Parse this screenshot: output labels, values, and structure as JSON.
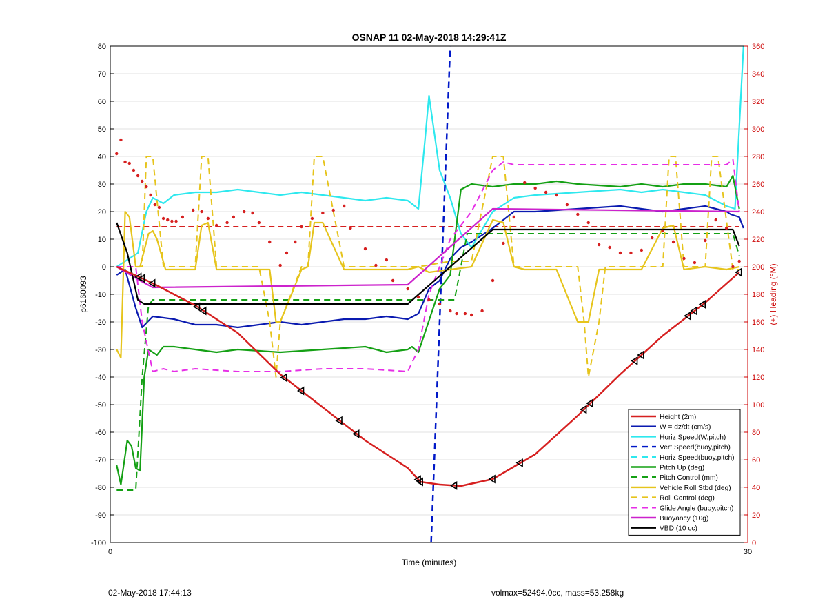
{
  "chart_data": {
    "type": "line",
    "title": "OSNAP 11 02-May-2018 14:29:41Z",
    "xlabel": "Time (minutes)",
    "ylabel": "p6160093",
    "y2label": "(+) Heading (°M)",
    "xlim": [
      0,
      30
    ],
    "ylim": [
      -100,
      80
    ],
    "y2lim": [
      0,
      360
    ],
    "xticks": [
      0,
      30
    ],
    "yticks": [
      -100,
      -90,
      -80,
      -70,
      -60,
      -50,
      -40,
      -30,
      -20,
      -10,
      0,
      10,
      20,
      30,
      40,
      50,
      60,
      70,
      80
    ],
    "y2ticks": [
      0,
      20,
      40,
      60,
      80,
      100,
      120,
      140,
      160,
      180,
      200,
      220,
      240,
      260,
      280,
      300,
      320,
      340,
      360
    ],
    "grid": "horizontal",
    "legend_position": "bottom-right",
    "colors": {
      "axis_right": "#cc0000",
      "axis_left": "#000000"
    },
    "series": [
      {
        "name": "Height (2m)",
        "color": "#d62020",
        "style": "solid",
        "width": 2.5,
        "x": [
          0.3,
          2,
          4,
          6,
          8,
          10,
          12,
          14,
          14.6,
          15.5,
          16.5,
          18,
          20,
          22,
          24,
          26,
          28,
          29.6
        ],
        "y": [
          0,
          -6,
          -14,
          -24,
          -39,
          -51,
          -63,
          -73,
          -78,
          -79,
          -79.5,
          -77,
          -68,
          -54,
          -39,
          -25,
          -13,
          -2
        ]
      },
      {
        "name": "W = dz/dt (cm/s)",
        "color": "#0a1ab0",
        "style": "solid",
        "width": 2.2,
        "x": [
          0.3,
          0.7,
          1.2,
          1.5,
          2,
          3,
          4,
          5,
          6,
          7,
          8,
          9,
          10,
          11,
          12,
          13,
          14,
          14.5,
          15,
          15.5,
          16,
          16.5,
          17,
          18,
          19,
          20,
          22,
          24,
          25,
          26,
          27,
          28,
          29,
          29.2,
          29.6,
          29.8
        ],
        "y": [
          -3,
          -1,
          -15,
          -22,
          -18,
          -19,
          -21,
          -21,
          -22,
          -21,
          -20,
          -21,
          -20,
          -19,
          -19,
          -18,
          -19,
          -17,
          -8,
          -5,
          3,
          7,
          9,
          14,
          20,
          20,
          21,
          22,
          21,
          20,
          21,
          22,
          20,
          19,
          18,
          14
        ]
      },
      {
        "name": "Horiz Speed(W,pitch)",
        "color": "#2ee8ee",
        "style": "solid",
        "width": 2.2,
        "x": [
          0.3,
          1.3,
          1.7,
          2,
          2.5,
          3,
          4,
          5,
          6,
          7,
          8,
          9,
          10,
          11,
          12,
          13,
          14,
          14.5,
          14.8,
          15,
          15.5,
          16,
          16.5,
          17,
          18,
          19,
          20,
          22,
          24,
          25,
          26,
          27,
          28,
          29,
          29.4,
          29.8
        ],
        "y": [
          0,
          5,
          20,
          25,
          23,
          26,
          27,
          27,
          28,
          27,
          26,
          27,
          26,
          25,
          24,
          25,
          24,
          21,
          45,
          62,
          35,
          25,
          12,
          7,
          20,
          25,
          26,
          27,
          28,
          27,
          28,
          27,
          26,
          22,
          21,
          80
        ]
      },
      {
        "name": "Vert Speed(buoy,pitch)",
        "color": "#0018c8",
        "style": "dashed",
        "width": 2.5,
        "x": [
          15.1,
          16.0
        ],
        "y": [
          -100,
          80
        ]
      },
      {
        "name": "Horiz Speed(buoy,pitch)",
        "color": "#2ee8ee",
        "style": "dashed",
        "width": 2,
        "x": [],
        "y": []
      },
      {
        "name": "Pitch Up (deg)",
        "color": "#14a014",
        "style": "solid",
        "width": 2.2,
        "x": [
          0.3,
          0.5,
          0.8,
          1,
          1.2,
          1.4,
          1.6,
          1.8,
          2.2,
          2.5,
          3,
          4,
          5,
          6,
          8,
          10,
          12,
          13,
          14,
          14.2,
          14.5,
          15.5,
          16,
          16.5,
          17,
          18,
          19,
          20,
          21,
          22,
          24,
          25,
          26,
          27,
          28,
          29,
          29.3,
          29.6
        ],
        "y": [
          -72,
          -79,
          -63,
          -65,
          -73,
          -74,
          -40,
          -30,
          -32,
          -29,
          -29,
          -30,
          -31,
          -30,
          -31,
          -30,
          -29,
          -31,
          -30,
          -29,
          -31,
          -8,
          -3,
          28,
          30,
          29,
          30,
          30,
          31,
          30,
          29,
          30,
          29,
          30,
          30,
          29,
          33,
          21
        ]
      },
      {
        "name": "Pitch Control (mm)",
        "color": "#14a014",
        "style": "dashed",
        "width": 2,
        "x": [
          0.3,
          1.2,
          1.5,
          1.8,
          2,
          3,
          14,
          14.4,
          16.2,
          16.8,
          29.3,
          29.6
        ],
        "y": [
          -81,
          -81,
          -40,
          -14,
          -12,
          -12,
          -12,
          -12,
          -12,
          12,
          12,
          4
        ]
      },
      {
        "name": "Vehicle Roll Stbd (deg)",
        "color": "#e6c41c",
        "style": "solid",
        "width": 2.2,
        "x": [
          0.3,
          0.5,
          0.7,
          0.9,
          1.2,
          1.4,
          1.8,
          2,
          2.2,
          2.6,
          3,
          4,
          4.3,
          4.6,
          5,
          6,
          7,
          7.5,
          7.8,
          8,
          9,
          9.3,
          9.6,
          10,
          11,
          11.5,
          12,
          13,
          14,
          14.5,
          15,
          16,
          17,
          18,
          18.5,
          19,
          19.5,
          20,
          21,
          22,
          22.5,
          23,
          23.5,
          24,
          25,
          26,
          26.5,
          27,
          28,
          29,
          29.6
        ],
        "y": [
          -30,
          -33,
          20,
          18,
          0,
          0,
          12,
          13,
          10,
          -1,
          -1,
          -1,
          15,
          16,
          -1,
          -1,
          -1,
          -1,
          -20,
          -20,
          -1,
          0,
          16,
          16,
          -1,
          -1,
          -1,
          -1,
          -1,
          0,
          -2,
          -1,
          0,
          17,
          16,
          0,
          -1,
          -1,
          -1,
          -20,
          -20,
          -1,
          -1,
          -1,
          -1,
          14,
          15,
          -1,
          0,
          -1,
          0
        ]
      },
      {
        "name": "Roll Control (deg)",
        "color": "#e6c41c",
        "style": "dashed",
        "width": 2,
        "x": [
          0.3,
          1.5,
          1.7,
          2,
          2.5,
          3,
          4,
          4.3,
          4.6,
          5,
          7,
          7.5,
          7.8,
          8,
          9,
          9.3,
          9.6,
          10,
          11,
          14,
          14.5,
          16,
          16.5,
          17,
          18,
          18.5,
          19,
          19.5,
          22,
          22.3,
          22.5,
          23,
          23.3,
          26,
          26.3,
          26.6,
          27,
          27.5,
          28,
          28.3,
          28.6,
          29.3,
          29.6
        ],
        "y": [
          0,
          0,
          40,
          40,
          0,
          0,
          0,
          40,
          40,
          0,
          0,
          -20,
          -40,
          -20,
          0,
          0,
          40,
          40,
          0,
          0,
          0,
          2,
          2,
          2,
          40,
          40,
          0,
          0,
          0,
          -20,
          -40,
          -20,
          0,
          0,
          40,
          40,
          0,
          0,
          0,
          40,
          40,
          -1,
          -1
        ]
      },
      {
        "name": "Glide Angle (buoy,pitch)",
        "color": "#e62ee6",
        "style": "dashed",
        "width": 2,
        "x": [
          0.3,
          1.2,
          1.5,
          2,
          2.5,
          3,
          4,
          6,
          8,
          10,
          12,
          14,
          14.5,
          15,
          16,
          17,
          18,
          18.5,
          19,
          20,
          21,
          22,
          24,
          26,
          28,
          29,
          29.3,
          29.6
        ],
        "y": [
          0,
          0,
          -20,
          -38,
          -37,
          -38,
          -37,
          -38,
          -38,
          -37,
          -37,
          -38,
          -30,
          -10,
          10,
          20,
          35,
          38,
          37,
          37,
          37,
          37,
          37,
          37,
          37,
          37,
          39,
          20
        ]
      },
      {
        "name": "Buoyancy (10g)",
        "color": "#cc22cc",
        "style": "solid",
        "width": 2.2,
        "x": [
          0.3,
          1.4,
          2,
          14,
          18,
          29.6
        ],
        "y": [
          0,
          -5,
          -7.5,
          -6.5,
          21,
          20
        ]
      },
      {
        "name": "VBD (10 cc)",
        "color": "#000000",
        "style": "solid",
        "width": 2.2,
        "x": [
          0.3,
          0.8,
          1.3,
          1.6,
          2,
          4,
          8,
          14,
          16,
          18,
          20,
          29.3,
          29.6
        ],
        "y": [
          16,
          5,
          -12,
          -13.5,
          -13.5,
          -13.5,
          -13.5,
          -13.5,
          0,
          13.5,
          13.5,
          13.5,
          7.5
        ]
      }
    ],
    "reference_line": {
      "color": "#d62020",
      "style": "dashed",
      "y": 14.5,
      "xstart": 0.3,
      "xend": 29.6
    },
    "heading_points": {
      "color": "#d62020",
      "axis": "right",
      "x": [
        0.3,
        0.5,
        0.7,
        0.9,
        1.1,
        1.3,
        1.5,
        1.7,
        1.9,
        2.1,
        2.3,
        2.5,
        2.7,
        2.9,
        3.1,
        3.4,
        3.9,
        4.3,
        4.6,
        5,
        5.5,
        5.8,
        6.3,
        6.7,
        7,
        7.5,
        8,
        8.3,
        8.7,
        9,
        9.5,
        10,
        10.5,
        11,
        11.3,
        12,
        12.5,
        13,
        13.3,
        14,
        14.5,
        15,
        15.5,
        16,
        16.3,
        16.7,
        17,
        17.5,
        18,
        18.5,
        19,
        19.5,
        20,
        20.5,
        21,
        21.5,
        22,
        22.5,
        23,
        23.5,
        24,
        24.5,
        25,
        25.5,
        26,
        26.5,
        27,
        27.5,
        28,
        28.5,
        29,
        29.3,
        29.6
      ],
      "y": [
        282,
        292,
        276,
        275,
        270,
        266,
        262,
        258,
        252,
        245,
        243,
        235,
        234,
        233,
        233,
        236,
        241,
        240,
        235,
        230,
        232,
        236,
        240,
        239,
        232,
        218,
        201,
        210,
        218,
        229,
        235,
        239,
        241,
        244,
        228,
        213,
        201,
        205,
        190,
        184,
        178,
        176,
        173,
        168,
        166,
        166,
        165,
        168,
        190,
        217,
        236,
        261,
        257,
        254,
        252,
        245,
        238,
        232,
        216,
        214,
        210,
        210,
        212,
        221,
        226,
        218,
        206,
        203,
        219,
        234,
        228,
        200,
        204
      ]
    },
    "footer_left": "02-May-2018 17:44:13",
    "footer_right": "volmax=52494.0cc, mass=53.258kg"
  }
}
